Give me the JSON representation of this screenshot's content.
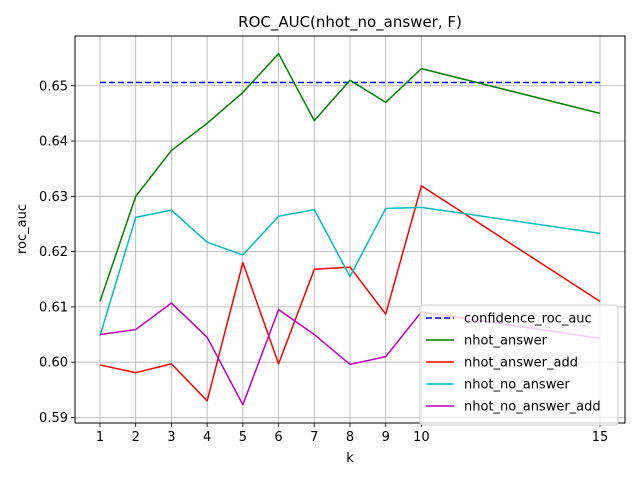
{
  "chart_data": {
    "type": "line",
    "title": "ROC_AUC(nhot_no_answer, F)",
    "xlabel": "k",
    "ylabel": "roc_auc",
    "x": [
      1,
      2,
      3,
      4,
      5,
      6,
      7,
      8,
      9,
      10,
      15
    ],
    "xticks": [
      1,
      2,
      3,
      4,
      5,
      6,
      7,
      8,
      9,
      10,
      15
    ],
    "xlim": [
      0.3,
      15.7
    ],
    "ylim": [
      0.589,
      0.659
    ],
    "yticks": [
      0.59,
      0.6,
      0.61,
      0.62,
      0.63,
      0.64,
      0.65
    ],
    "ytick_labels": [
      "0.59",
      "0.60",
      "0.61",
      "0.62",
      "0.63",
      "0.64",
      "0.65"
    ],
    "grid": true,
    "legend_position": "lower-right",
    "series": [
      {
        "name": "confidence_roc_auc",
        "color": "#0000ff",
        "dashed": true,
        "values": [
          0.6506,
          0.6506,
          0.6506,
          0.6506,
          0.6506,
          0.6506,
          0.6506,
          0.6506,
          0.6506,
          0.6506,
          0.6506
        ]
      },
      {
        "name": "nhot_answer",
        "color": "#008000",
        "dashed": false,
        "values": [
          0.611,
          0.63,
          0.6383,
          0.6432,
          0.6488,
          0.6558,
          0.6437,
          0.651,
          0.647,
          0.6531,
          0.645
        ]
      },
      {
        "name": "nhot_answer_add",
        "color": "#ff0000",
        "dashed": false,
        "values": [
          0.5995,
          0.5981,
          0.5997,
          0.593,
          0.618,
          0.5997,
          0.6168,
          0.6172,
          0.6087,
          0.6319,
          0.611
        ]
      },
      {
        "name": "nhot_no_answer",
        "color": "#00bfbf",
        "dashed": false,
        "values": [
          0.6048,
          0.6262,
          0.6275,
          0.6217,
          0.6194,
          0.6264,
          0.6276,
          0.6155,
          0.6278,
          0.628,
          0.6233
        ]
      },
      {
        "name": "nhot_no_answer_add",
        "color": "#bf00bf",
        "dashed": false,
        "values": [
          0.605,
          0.6059,
          0.6107,
          0.6045,
          0.5923,
          0.6095,
          0.605,
          0.5996,
          0.601,
          0.6091,
          0.6043
        ]
      }
    ]
  }
}
